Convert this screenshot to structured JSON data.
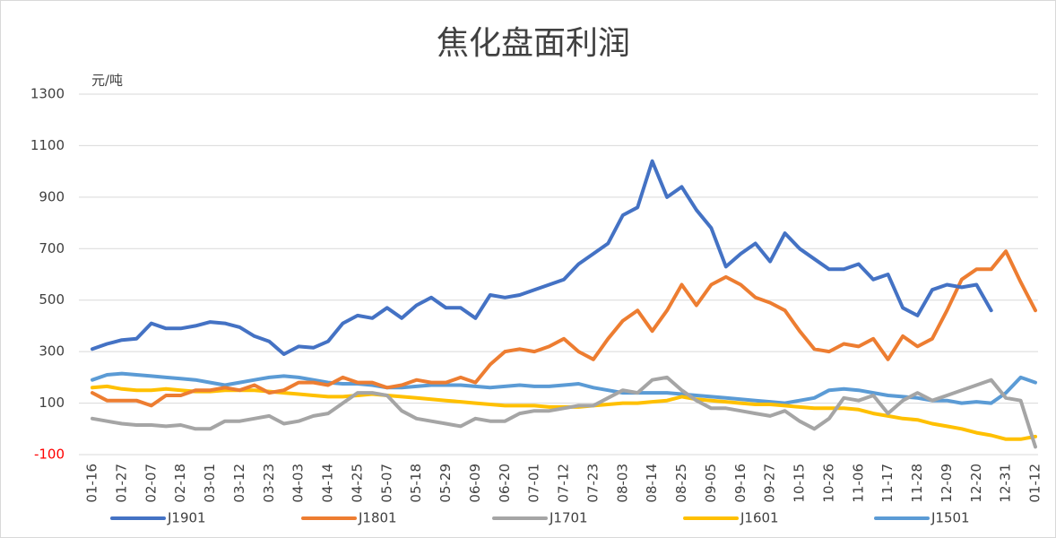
{
  "chart_data": {
    "type": "line",
    "title": "焦化盘面利润",
    "y_label": "元/吨",
    "categories": [
      "01-16",
      null,
      "01-27",
      null,
      "02-07",
      null,
      "02-18",
      null,
      "03-01",
      null,
      "03-12",
      null,
      "03-23",
      null,
      "04-03",
      null,
      "04-14",
      null,
      "04-25",
      null,
      "05-07",
      null,
      "05-18",
      null,
      "05-29",
      null,
      "06-09",
      null,
      "06-20",
      null,
      "07-01",
      null,
      "07-12",
      null,
      "07-23",
      null,
      "08-03",
      null,
      "08-14",
      null,
      "08-25",
      null,
      "09-05",
      null,
      "09-16",
      null,
      "09-27",
      null,
      "10-15",
      null,
      "10-26",
      null,
      "11-06",
      null,
      "11-17",
      null,
      "11-28",
      null,
      "12-09",
      null,
      "12-20",
      null,
      "12-31",
      null,
      "01-12"
    ],
    "series": [
      {
        "name": "J1901",
        "color": "#4472c4",
        "values": [
          310,
          330,
          345,
          350,
          410,
          390,
          390,
          400,
          415,
          410,
          395,
          360,
          340,
          290,
          320,
          315,
          340,
          410,
          440,
          430,
          470,
          430,
          480,
          510,
          470,
          470,
          430,
          520,
          510,
          520,
          540,
          560,
          580,
          640,
          680,
          720,
          830,
          860,
          1040,
          900,
          940,
          850,
          780,
          630,
          680,
          720,
          650,
          760,
          700,
          660,
          620,
          620,
          640,
          580,
          600,
          470,
          440,
          540,
          560,
          550,
          560,
          460,
          null,
          null,
          null
        ]
      },
      {
        "name": "J1801",
        "color": "#ed7d31",
        "values": [
          140,
          110,
          110,
          110,
          90,
          130,
          130,
          150,
          150,
          160,
          150,
          170,
          140,
          150,
          180,
          180,
          170,
          200,
          180,
          180,
          160,
          170,
          190,
          180,
          180,
          200,
          180,
          250,
          300,
          310,
          300,
          320,
          350,
          300,
          270,
          350,
          420,
          460,
          380,
          460,
          560,
          480,
          560,
          590,
          560,
          510,
          490,
          460,
          380,
          310,
          300,
          330,
          320,
          350,
          270,
          360,
          320,
          350,
          460,
          580,
          620,
          620,
          690,
          570,
          460
        ]
      },
      {
        "name": "J1701",
        "color": "#a5a5a5",
        "values": [
          40,
          30,
          20,
          15,
          15,
          10,
          15,
          0,
          0,
          30,
          30,
          40,
          50,
          20,
          30,
          50,
          60,
          100,
          140,
          140,
          130,
          70,
          40,
          30,
          20,
          10,
          40,
          30,
          30,
          60,
          70,
          70,
          80,
          90,
          90,
          120,
          150,
          140,
          190,
          200,
          150,
          110,
          80,
          80,
          70,
          60,
          50,
          70,
          30,
          0,
          40,
          120,
          110,
          130,
          60,
          110,
          140,
          110,
          130,
          150,
          170,
          190,
          120,
          110,
          -70
        ]
      },
      {
        "name": "J1601",
        "color": "#ffc000",
        "values": [
          160,
          165,
          155,
          150,
          150,
          155,
          150,
          145,
          145,
          150,
          150,
          150,
          145,
          140,
          135,
          130,
          125,
          125,
          130,
          135,
          130,
          125,
          120,
          115,
          110,
          105,
          100,
          95,
          90,
          90,
          90,
          85,
          85,
          85,
          90,
          95,
          100,
          100,
          105,
          110,
          125,
          115,
          110,
          105,
          100,
          95,
          95,
          90,
          85,
          80,
          80,
          80,
          75,
          60,
          50,
          40,
          35,
          20,
          10,
          0,
          -15,
          -25,
          -40,
          -40,
          -30
        ]
      },
      {
        "name": "J1501",
        "color": "#5b9bd5",
        "values": [
          190,
          210,
          215,
          210,
          205,
          200,
          195,
          190,
          180,
          170,
          180,
          190,
          200,
          205,
          200,
          190,
          180,
          175,
          175,
          170,
          160,
          160,
          165,
          170,
          170,
          170,
          165,
          160,
          165,
          170,
          165,
          165,
          170,
          175,
          160,
          150,
          140,
          140,
          140,
          140,
          135,
          130,
          125,
          120,
          115,
          110,
          105,
          100,
          110,
          120,
          150,
          155,
          150,
          140,
          130,
          125,
          120,
          110,
          110,
          100,
          105,
          100,
          140,
          200,
          180
        ]
      }
    ],
    "ylim": [
      -100,
      1300
    ],
    "yticks": [
      -100,
      100,
      300,
      500,
      700,
      900,
      1100,
      1300
    ],
    "grid": true,
    "negative_tick_color": "#ff0000",
    "legend": "bottom"
  }
}
